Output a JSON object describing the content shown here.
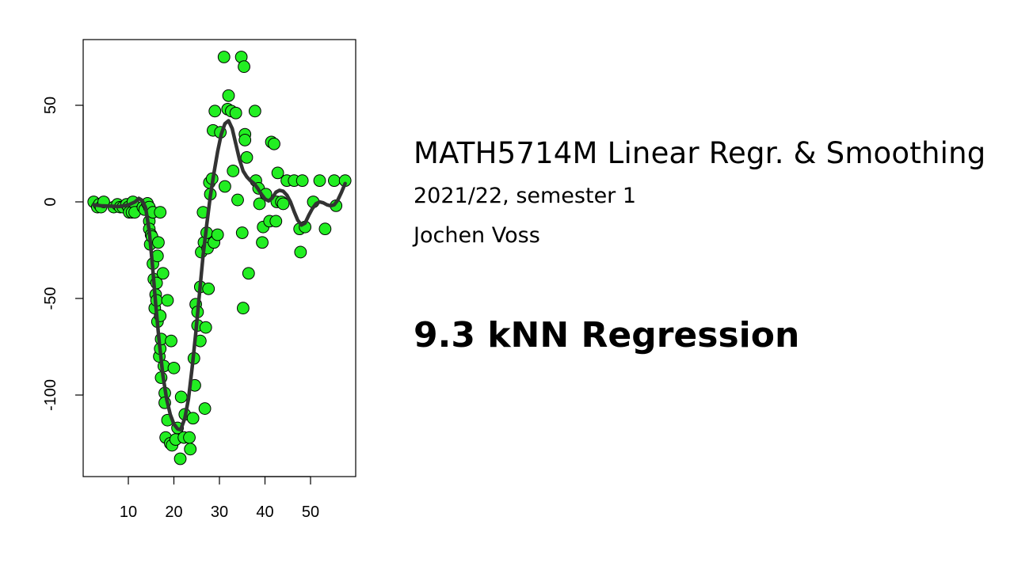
{
  "slide": {
    "course_title": "MATH5714M Linear Regr. & Smoothing",
    "term": "2021/22, semester 1",
    "author": "Jochen Voss",
    "section_title": "9.3 kNN Regression"
  },
  "chart_data": {
    "type": "scatter",
    "title": "",
    "xlabel": "",
    "ylabel": "",
    "xlim": [
      0,
      60
    ],
    "ylim": [
      -142,
      84
    ],
    "xticks": [
      10,
      20,
      30,
      40,
      50
    ],
    "yticks": [
      50,
      0,
      -50,
      -100
    ],
    "grid": false,
    "point_color": "#22ee22",
    "point_stroke": "#000000",
    "curve_color": "#333333",
    "points": [
      [
        2.4,
        0.0
      ],
      [
        3.2,
        -2.7
      ],
      [
        3.6,
        -1.3
      ],
      [
        4.0,
        -2.7
      ],
      [
        4.6,
        0.0
      ],
      [
        6.8,
        -2.7
      ],
      [
        7.6,
        -1.3
      ],
      [
        8.2,
        -2.7
      ],
      [
        8.8,
        -2.7
      ],
      [
        9.6,
        -1.3
      ],
      [
        10.0,
        -2.7
      ],
      [
        10.2,
        -5.4
      ],
      [
        10.8,
        -5.4
      ],
      [
        11.0,
        0.0
      ],
      [
        11.4,
        -5.4
      ],
      [
        13.2,
        -2.7
      ],
      [
        13.6,
        -4.0
      ],
      [
        14.2,
        -0.8
      ],
      [
        14.6,
        -2.7
      ],
      [
        14.6,
        -10.0
      ],
      [
        14.6,
        -14.0
      ],
      [
        14.8,
        -22.0
      ],
      [
        15.0,
        -17.0
      ],
      [
        15.2,
        -18.0
      ],
      [
        15.4,
        -5.4
      ],
      [
        15.4,
        -32.0
      ],
      [
        15.6,
        -40.0
      ],
      [
        15.8,
        -55.0
      ],
      [
        16.0,
        -48.0
      ],
      [
        16.2,
        -42.0
      ],
      [
        16.2,
        -51.0
      ],
      [
        16.4,
        -62.0
      ],
      [
        16.4,
        -28.0
      ],
      [
        16.6,
        -21.0
      ],
      [
        16.8,
        -80.0
      ],
      [
        17.0,
        -5.4
      ],
      [
        17.0,
        -76.0
      ],
      [
        17.0,
        -59.0
      ],
      [
        17.2,
        -71.0
      ],
      [
        17.2,
        -91.0
      ],
      [
        17.6,
        -37.0
      ],
      [
        17.8,
        -85.0
      ],
      [
        18.0,
        -99.0
      ],
      [
        18.0,
        -104.0
      ],
      [
        18.2,
        -122.0
      ],
      [
        18.6,
        -113.0
      ],
      [
        18.6,
        -51.0
      ],
      [
        19.2,
        -125.0
      ],
      [
        19.4,
        -72.0
      ],
      [
        19.6,
        -126.0
      ],
      [
        20.0,
        -86.0
      ],
      [
        20.4,
        -123.0
      ],
      [
        20.8,
        -117.0
      ],
      [
        21.4,
        -133.0
      ],
      [
        21.6,
        -101.0
      ],
      [
        22.2,
        -122.0
      ],
      [
        22.4,
        -110.0
      ],
      [
        23.4,
        -122.0
      ],
      [
        23.6,
        -128.0
      ],
      [
        24.2,
        -112.0
      ],
      [
        24.4,
        -81.0
      ],
      [
        24.6,
        -95.0
      ],
      [
        24.8,
        -53.0
      ],
      [
        25.2,
        -64.0
      ],
      [
        25.2,
        -57.0
      ],
      [
        25.8,
        -44.0
      ],
      [
        25.8,
        -72.0
      ],
      [
        26.0,
        -26.0
      ],
      [
        26.4,
        -5.4
      ],
      [
        26.6,
        -21.0
      ],
      [
        26.8,
        -107.0
      ],
      [
        27.0,
        -65.0
      ],
      [
        27.2,
        -16.0
      ],
      [
        27.4,
        -24.0
      ],
      [
        27.6,
        -45.0
      ],
      [
        27.8,
        10.0
      ],
      [
        28.0,
        4.0
      ],
      [
        28.4,
        12.0
      ],
      [
        28.6,
        37.0
      ],
      [
        28.8,
        -21.0
      ],
      [
        29.0,
        47.0
      ],
      [
        29.6,
        -17.0
      ],
      [
        30.2,
        36.0
      ],
      [
        31.0,
        75.0
      ],
      [
        31.2,
        8.0
      ],
      [
        31.8,
        48.0
      ],
      [
        32.0,
        55.0
      ],
      [
        32.6,
        47.0
      ],
      [
        33.0,
        16.0
      ],
      [
        33.6,
        46.0
      ],
      [
        34.0,
        1.0
      ],
      [
        34.8,
        75.0
      ],
      [
        35.0,
        -16.0
      ],
      [
        35.2,
        -55.0
      ],
      [
        35.4,
        70.0
      ],
      [
        35.6,
        35.0
      ],
      [
        35.6,
        32.0
      ],
      [
        36.0,
        23.0
      ],
      [
        36.4,
        -37.0
      ],
      [
        37.8,
        47.0
      ],
      [
        38.0,
        11.0
      ],
      [
        38.6,
        7.0
      ],
      [
        38.8,
        -1.0
      ],
      [
        39.4,
        -21.0
      ],
      [
        39.6,
        -13.0
      ],
      [
        40.2,
        4.0
      ],
      [
        41.0,
        -10.0
      ],
      [
        41.4,
        31.0
      ],
      [
        42.0,
        30.0
      ],
      [
        42.4,
        -10.0
      ],
      [
        42.6,
        0.0
      ],
      [
        42.8,
        15.0
      ],
      [
        43.6,
        0.0
      ],
      [
        44.0,
        -1.0
      ],
      [
        44.8,
        11.0
      ],
      [
        46.4,
        11.0
      ],
      [
        47.6,
        -14.0
      ],
      [
        47.8,
        -26.0
      ],
      [
        48.2,
        11.0
      ],
      [
        48.8,
        -13.0
      ],
      [
        50.6,
        0.0
      ],
      [
        52.0,
        11.0
      ],
      [
        53.2,
        -14.0
      ],
      [
        55.2,
        11.0
      ],
      [
        55.6,
        -2.0
      ],
      [
        57.6,
        11.0
      ]
    ],
    "curve": [
      [
        2.4,
        -1.5
      ],
      [
        4,
        -2.0
      ],
      [
        6,
        -2.2
      ],
      [
        8,
        -2.4
      ],
      [
        10,
        -1.6
      ],
      [
        11.5,
        0.0
      ],
      [
        12.3,
        1.8
      ],
      [
        13.0,
        0.8
      ],
      [
        13.8,
        -3.0
      ],
      [
        14.6,
        -15.0
      ],
      [
        15.3,
        -33.0
      ],
      [
        16.0,
        -53.0
      ],
      [
        16.8,
        -73.0
      ],
      [
        17.6,
        -90.0
      ],
      [
        18.4,
        -102.0
      ],
      [
        19.2,
        -110.0
      ],
      [
        20.0,
        -115.0
      ],
      [
        20.8,
        -117.5
      ],
      [
        21.5,
        -118.0
      ],
      [
        22.4,
        -112.0
      ],
      [
        23.2,
        -102.0
      ],
      [
        24.0,
        -86.0
      ],
      [
        24.8,
        -68.0
      ],
      [
        25.6,
        -48.0
      ],
      [
        26.4,
        -28.0
      ],
      [
        27.2,
        -12.0
      ],
      [
        28.0,
        3.0
      ],
      [
        28.8,
        15.0
      ],
      [
        29.6,
        26.0
      ],
      [
        30.4,
        35.0
      ],
      [
        31.2,
        40.5
      ],
      [
        32.0,
        42.0
      ],
      [
        32.8,
        38.0
      ],
      [
        33.6,
        30.0
      ],
      [
        34.4,
        22.0
      ],
      [
        35.2,
        16.0
      ],
      [
        36.0,
        13.0
      ],
      [
        36.8,
        11.0
      ],
      [
        37.6,
        9.5
      ],
      [
        38.4,
        7.0
      ],
      [
        39.2,
        4.0
      ],
      [
        40.0,
        1.5
      ],
      [
        40.8,
        0.5
      ],
      [
        41.6,
        2.0
      ],
      [
        42.4,
        5.0
      ],
      [
        43.2,
        6.0
      ],
      [
        44.0,
        5.5
      ],
      [
        44.8,
        3.5
      ],
      [
        45.6,
        0.0
      ],
      [
        46.4,
        -5.0
      ],
      [
        47.2,
        -9.5
      ],
      [
        48.0,
        -12.0
      ],
      [
        48.8,
        -11.0
      ],
      [
        49.6,
        -7.0
      ],
      [
        50.4,
        -3.5
      ],
      [
        51.2,
        -1.0
      ],
      [
        52.0,
        0.0
      ],
      [
        52.8,
        -0.5
      ],
      [
        53.6,
        -1.5
      ],
      [
        54.4,
        -2.0
      ],
      [
        55.2,
        -1.5
      ],
      [
        56.0,
        1.0
      ],
      [
        56.8,
        5.0
      ],
      [
        57.6,
        9.5
      ]
    ]
  }
}
